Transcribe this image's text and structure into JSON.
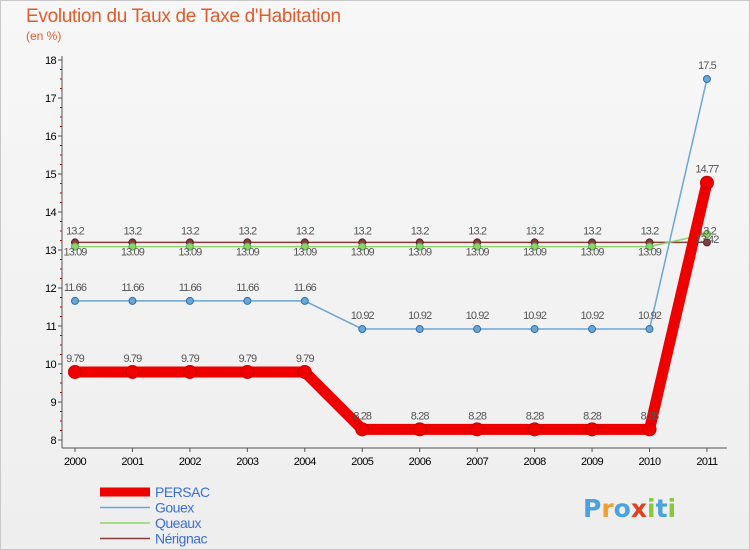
{
  "title": "Evolution du Taux de Taxe d'Habitation",
  "subtitle": "(en %)",
  "brand": "Proxiti",
  "chart_data": {
    "type": "line",
    "title": "Evolution du Taux de Taxe d'Habitation",
    "ylabel": "(en %)",
    "xlabel": "",
    "ylim": [
      8,
      18
    ],
    "yticks": [
      "8",
      "9",
      "10",
      "11",
      "12",
      "13",
      "14",
      "15",
      "16",
      "17",
      "18"
    ],
    "categories": [
      "2000",
      "2001",
      "2002",
      "2003",
      "2004",
      "2005",
      "2006",
      "2007",
      "2008",
      "2009",
      "2010",
      "2011"
    ],
    "series": [
      {
        "name": "PERSAC",
        "color": "#ee0000",
        "values": [
          9.79,
          9.79,
          9.79,
          9.79,
          9.79,
          8.28,
          8.28,
          8.28,
          8.28,
          8.28,
          8.28,
          14.77
        ],
        "labels": [
          "9.79",
          "9.79",
          "9.79",
          "9.79",
          "9.79",
          "8.28",
          "8.28",
          "8.28",
          "8.28",
          "8.28",
          "8.28",
          "14.77"
        ]
      },
      {
        "name": "Gouex",
        "color": "#6aa6d8",
        "values": [
          11.66,
          11.66,
          11.66,
          11.66,
          11.66,
          10.92,
          10.92,
          10.92,
          10.92,
          10.92,
          10.92,
          17.5
        ],
        "labels": [
          "11.66",
          "11.66",
          "11.66",
          "11.66",
          "11.66",
          "10.92",
          "10.92",
          "10.92",
          "10.92",
          "10.92",
          "10.92",
          "17.5"
        ]
      },
      {
        "name": "Queaux",
        "color": "#8fd46a",
        "values": [
          13.09,
          13.09,
          13.09,
          13.09,
          13.09,
          13.09,
          13.09,
          13.09,
          13.09,
          13.09,
          13.09,
          13.42
        ],
        "labels": [
          "13.09",
          "13.09",
          "13.09",
          "13.09",
          "13.09",
          "13.09",
          "13.09",
          "13.09",
          "13.09",
          "13.09",
          "13.09",
          "13.42"
        ]
      },
      {
        "name": "Nérignac",
        "color": "#8b3a3a",
        "values": [
          13.2,
          13.2,
          13.2,
          13.2,
          13.2,
          13.2,
          13.2,
          13.2,
          13.2,
          13.2,
          13.2,
          13.2
        ],
        "labels": [
          "13.2",
          "13.2",
          "13.2",
          "13.2",
          "13.2",
          "13.2",
          "13.2",
          "13.2",
          "13.2",
          "13.2",
          "13.2",
          "13.2"
        ]
      }
    ],
    "legend": "bottom-left"
  }
}
